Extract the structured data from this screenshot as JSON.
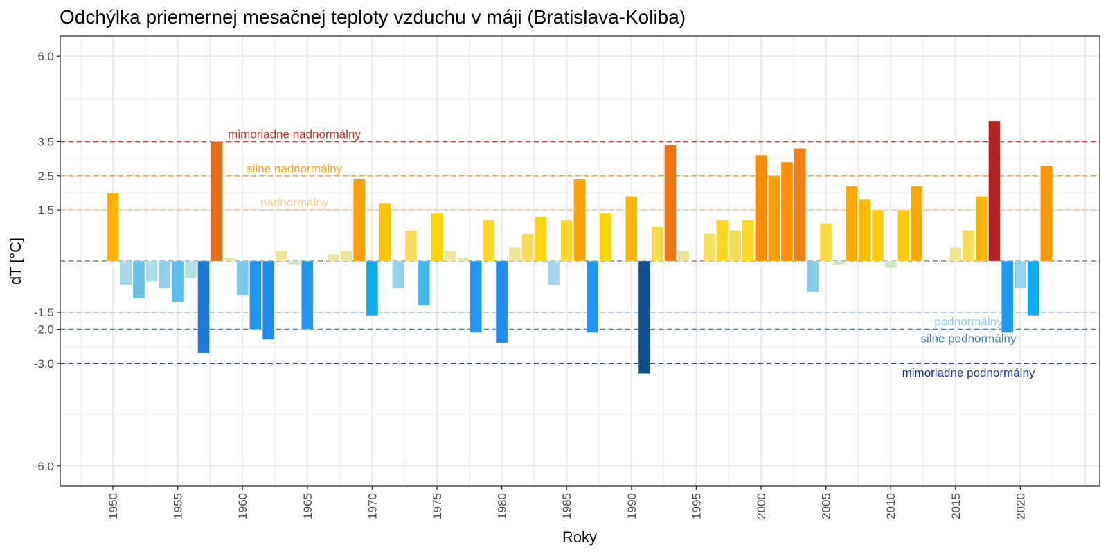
{
  "chart_data": {
    "type": "bar",
    "title": "Odchýlka priemernej mesačnej teploty vzduchu v máji (Bratislava-Koliba)",
    "xlabel": "Roky",
    "ylabel": "dT [°C]",
    "xlim": [
      1946,
      2026
    ],
    "ylim": [
      -7.0,
      6.6
    ],
    "grid": true,
    "legend": "none",
    "x_ticks": [
      "1950",
      "1955",
      "1960",
      "1965",
      "1970",
      "1975",
      "1980",
      "1985",
      "1990",
      "1995",
      "2000",
      "2005",
      "2010",
      "2015",
      "2020"
    ],
    "y_ticks": [
      {
        "value": 6.0,
        "label": "6.0"
      },
      {
        "value": 3.5,
        "label": "3.5"
      },
      {
        "value": 2.5,
        "label": "2.5"
      },
      {
        "value": 1.5,
        "label": "1.5"
      },
      {
        "value": -1.5,
        "label": "-1.5"
      },
      {
        "value": -2.0,
        "label": "-2.0"
      },
      {
        "value": -3.0,
        "label": "-3.0"
      },
      {
        "value": -6.0,
        "label": "-6.0"
      }
    ],
    "reference_lines": [
      {
        "value": 3.5,
        "label": "mimoriadne nadnormálny",
        "color": "#c0392b",
        "label_year": 1964,
        "label_pos": "above"
      },
      {
        "value": 2.5,
        "label": "silne nadnormálny",
        "color": "#f5a623",
        "label_year": 1964,
        "label_pos": "above"
      },
      {
        "value": 1.5,
        "label": "nadnormálny",
        "color": "#f3cf9a",
        "label_year": 1964,
        "label_pos": "above"
      },
      {
        "value": 0.0,
        "label": "",
        "color": "#808080",
        "label_year": null,
        "label_pos": "none"
      },
      {
        "value": -1.5,
        "label": "podnormálny",
        "color": "#87ceeb",
        "label_year": 2016,
        "label_pos": "below"
      },
      {
        "value": -2.0,
        "label": "silne podnormálny",
        "color": "#4682b4",
        "label_year": 2016,
        "label_pos": "below"
      },
      {
        "value": -3.0,
        "label": "mimoriadne podnormálny",
        "color": "#233b8c",
        "label_year": 2016,
        "label_pos": "below"
      }
    ],
    "years": [
      1950,
      1951,
      1952,
      1953,
      1954,
      1955,
      1956,
      1957,
      1958,
      1959,
      1960,
      1961,
      1962,
      1963,
      1964,
      1965,
      1966,
      1967,
      1968,
      1969,
      1970,
      1971,
      1972,
      1973,
      1974,
      1975,
      1976,
      1977,
      1978,
      1979,
      1980,
      1981,
      1982,
      1983,
      1984,
      1985,
      1986,
      1987,
      1988,
      1989,
      1990,
      1991,
      1992,
      1993,
      1994,
      1995,
      1996,
      1997,
      1998,
      1999,
      2000,
      2001,
      2002,
      2003,
      2004,
      2005,
      2006,
      2007,
      2008,
      2009,
      2010,
      2011,
      2012,
      2013,
      2014,
      2015,
      2016,
      2017,
      2018,
      2019,
      2020,
      2021,
      2022
    ],
    "values": [
      2.0,
      -0.7,
      -1.1,
      -0.6,
      -0.8,
      -1.2,
      -0.5,
      -2.7,
      3.5,
      0.1,
      -1.0,
      -2.0,
      -2.3,
      0.3,
      -0.1,
      -2.0,
      0.0,
      0.2,
      0.3,
      2.4,
      -1.6,
      1.7,
      -0.8,
      0.9,
      -1.3,
      1.4,
      0.3,
      0.1,
      -2.1,
      1.2,
      -2.4,
      0.4,
      0.8,
      1.3,
      -0.7,
      1.2,
      2.4,
      -2.1,
      1.4,
      0.0,
      1.9,
      -3.3,
      1.0,
      3.4,
      0.3,
      0.0,
      0.8,
      1.2,
      0.9,
      1.2,
      3.1,
      2.5,
      2.9,
      3.3,
      -0.9,
      1.1,
      -0.1,
      2.2,
      1.8,
      1.5,
      -0.2,
      1.5,
      2.2,
      0.0,
      0.0,
      0.4,
      0.9,
      1.9,
      4.1,
      -2.1,
      -0.8,
      -1.6,
      2.8
    ],
    "colors": [
      "#ffb300",
      "#a5d8ea",
      "#68c3ea",
      "#aeddea",
      "#8fd0ea",
      "#5bbdee",
      "#b6e0e6",
      "#1a78d6",
      "#e46b19",
      "#e6e5a8",
      "#79c8ea",
      "#1f96f3",
      "#1f8bf6",
      "#ede599",
      "#d3e3c2",
      "#1f99f5",
      "#ffffff",
      "#eae49e",
      "#ede599",
      "#ffa000",
      "#10aaf0",
      "#ffc400",
      "#93d1ea",
      "#f8dd5a",
      "#45b6ec",
      "#ffd300",
      "#ede599",
      "#e6e5a8",
      "#1f99f5",
      "#ffd622",
      "#1f8bf6",
      "#efe491",
      "#f7dc5c",
      "#ffd50d",
      "#a2d8ea",
      "#fed62c",
      "#ffa100",
      "#1f99f5",
      "#ffd500",
      "#ffffff",
      "#ffb600",
      "#11508e",
      "#f8dc47",
      "#eb7515",
      "#eae49a",
      "#ffffff",
      "#f7df60",
      "#ffd622",
      "#f8dc57",
      "#ffd622",
      "#ff8c00",
      "#ffa000",
      "#ff8f00",
      "#f47f10",
      "#88ccec",
      "#fcd935",
      "#d1e3c3",
      "#ffa900",
      "#ffbb00",
      "#ffcc00",
      "#d0e3c4",
      "#ffcc00",
      "#ffa800",
      "#ffffff",
      "#ffffff",
      "#efe58f",
      "#f8dc55",
      "#ffb500",
      "#b22222",
      "#1f99f5",
      "#93d1ea",
      "#10aaf0",
      "#ff9500"
    ]
  }
}
